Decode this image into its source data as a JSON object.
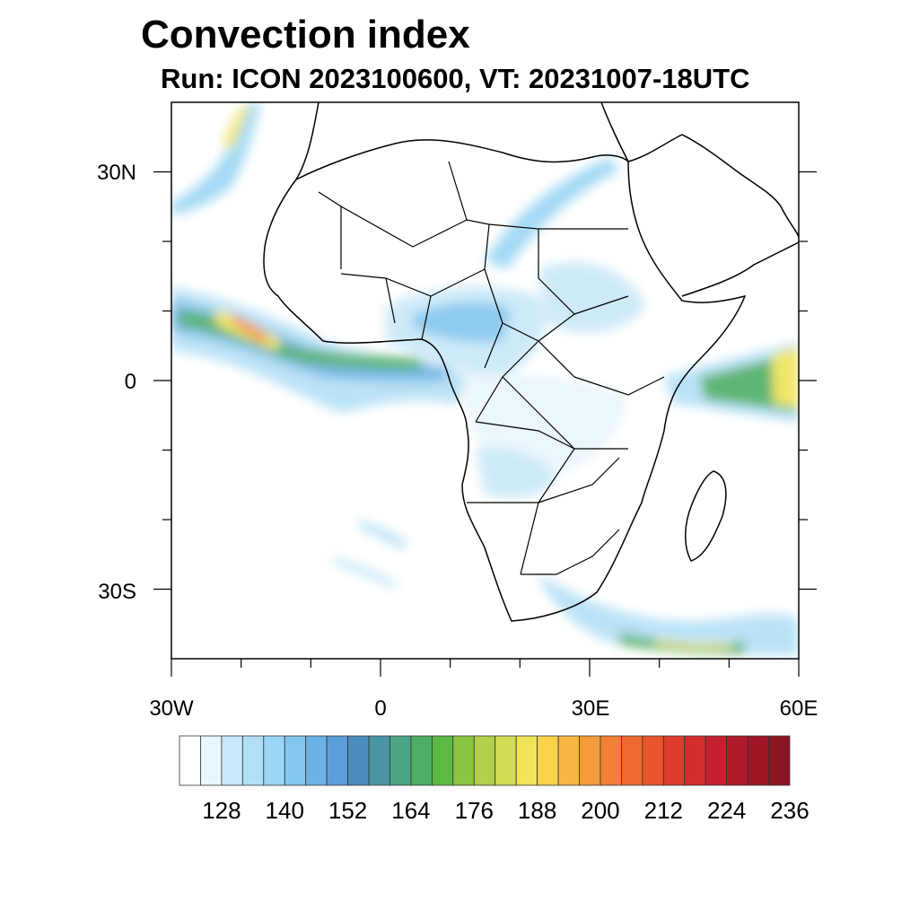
{
  "title": "Convection index",
  "subtitle": "Run: ICON 2023100600,  VT: 20231007-18UTC",
  "axes": {
    "lon_labels": [
      "30W",
      "0",
      "30E",
      "60E"
    ],
    "lat_labels": [
      "30N",
      "0",
      "30S"
    ],
    "lon_range": [
      -30,
      60
    ],
    "lat_range": [
      -40,
      40
    ]
  },
  "colorbar": {
    "colors": [
      "#ffffff",
      "#e9f6fd",
      "#c9e8f8",
      "#b2dff6",
      "#9bd6f4",
      "#83c6ee",
      "#6cb2e4",
      "#5a9ed8",
      "#4b8cbf",
      "#4995a4",
      "#4ba686",
      "#4eae63",
      "#5cb946",
      "#8bc640",
      "#b2d04b",
      "#d3dc55",
      "#efe45a",
      "#fbd14c",
      "#f8b545",
      "#f69b3d",
      "#f27f34",
      "#ee6a2e",
      "#e8542b",
      "#e03c2b",
      "#d42d2e",
      "#c3212e",
      "#b01b2b",
      "#9f1727",
      "#8c1522"
    ],
    "labels": [
      "128",
      "140",
      "152",
      "164",
      "176",
      "188",
      "200",
      "212",
      "224",
      "236"
    ],
    "label_every": 3,
    "first_label_index": 2
  }
}
